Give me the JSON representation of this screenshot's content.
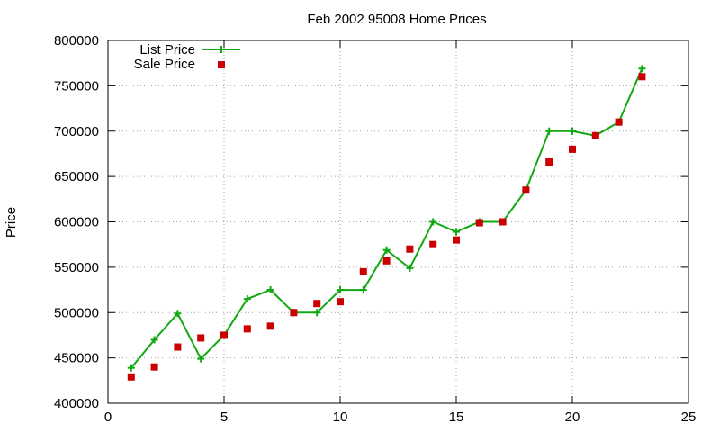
{
  "chart_data": {
    "type": "line",
    "title": "Feb 2002 95008 Home Prices",
    "xlabel": "",
    "ylabel": "Price",
    "xlim": [
      0,
      25
    ],
    "ylim": [
      400000,
      800000
    ],
    "xticks": [
      0,
      5,
      10,
      15,
      20,
      25
    ],
    "yticks": [
      400000,
      450000,
      500000,
      550000,
      600000,
      650000,
      700000,
      750000,
      800000
    ],
    "grid": true,
    "legend_position": "top-left",
    "series": [
      {
        "name": "List Price",
        "style": "line+cross",
        "color": "#11a811",
        "x": [
          1,
          2,
          3,
          4,
          5,
          6,
          7,
          8,
          9,
          10,
          11,
          12,
          13,
          14,
          15,
          16,
          17,
          18,
          19,
          20,
          21,
          22,
          23
        ],
        "values": [
          439000,
          470000,
          499000,
          449000,
          475000,
          515000,
          525000,
          500000,
          500000,
          525000,
          525000,
          569000,
          549000,
          600000,
          589000,
          600000,
          600000,
          635000,
          700000,
          700000,
          695000,
          710000,
          769000
        ]
      },
      {
        "name": "Sale Price",
        "style": "square",
        "color": "#cc0000",
        "x": [
          1,
          2,
          3,
          4,
          5,
          6,
          7,
          8,
          9,
          10,
          11,
          12,
          13,
          14,
          15,
          16,
          17,
          18,
          19,
          20,
          21,
          22,
          23
        ],
        "values": [
          429000,
          440000,
          462000,
          472000,
          475000,
          482000,
          485000,
          500000,
          510000,
          512000,
          545000,
          557000,
          570000,
          575000,
          580000,
          599000,
          600000,
          635000,
          666000,
          680000,
          695000,
          710000,
          760000
        ]
      }
    ]
  }
}
